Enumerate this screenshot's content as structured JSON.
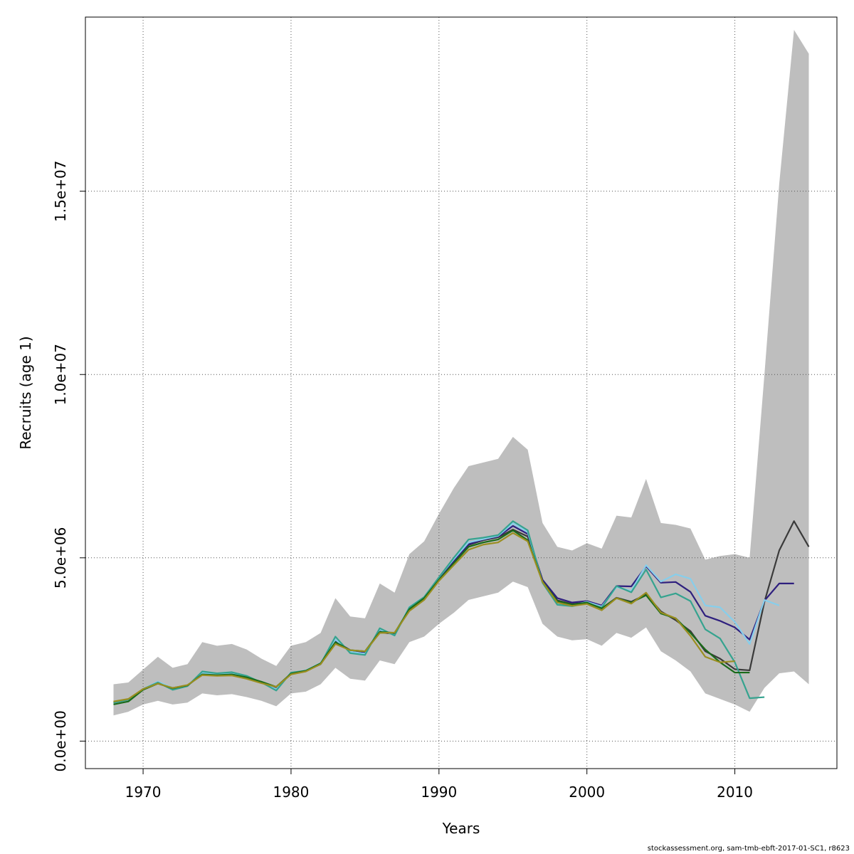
{
  "chart_data": {
    "type": "line",
    "title": "",
    "xlabel": "Years",
    "ylabel": "Recruits (age 1)",
    "xlim": [
      1966.1,
      2016.9
    ],
    "ylim": [
      -750000,
      19750000
    ],
    "x_ticks": [
      1970,
      1980,
      1990,
      2000,
      2010
    ],
    "x_tick_labels": [
      "1970",
      "1980",
      "1990",
      "2000",
      "2010"
    ],
    "y_ticks": [
      0,
      5000000,
      10000000,
      15000000
    ],
    "y_tick_labels": [
      "0.0e+00",
      "5.0e+06",
      "1.0e+07",
      "1.5e+07"
    ],
    "grid": true,
    "confidence_band": {
      "color": "#bebebe",
      "x": [
        1968,
        1969,
        1970,
        1971,
        1972,
        1973,
        1974,
        1975,
        1976,
        1977,
        1978,
        1979,
        1980,
        1981,
        1982,
        1983,
        1984,
        1985,
        1986,
        1987,
        1988,
        1989,
        1990,
        1991,
        1992,
        1993,
        1994,
        1995,
        1996,
        1997,
        1998,
        1999,
        2000,
        2001,
        2002,
        2003,
        2004,
        2005,
        2006,
        2007,
        2008,
        2009,
        2010,
        2011,
        2012,
        2013,
        2014,
        2015
      ],
      "lower": [
        700000,
        800000,
        1000000,
        1100000,
        1000000,
        1050000,
        1300000,
        1250000,
        1280000,
        1200000,
        1100000,
        950000,
        1300000,
        1350000,
        1550000,
        2000000,
        1700000,
        1650000,
        2200000,
        2100000,
        2700000,
        2850000,
        3200000,
        3500000,
        3850000,
        3950000,
        4050000,
        4350000,
        4200000,
        3200000,
        2850000,
        2750000,
        2780000,
        2600000,
        2950000,
        2820000,
        3100000,
        2450000,
        2200000,
        1900000,
        1300000,
        1150000,
        1000000,
        800000,
        1450000,
        1850000,
        1900000,
        1550000
      ],
      "upper": [
        1550000,
        1600000,
        1950000,
        2300000,
        2000000,
        2100000,
        2700000,
        2600000,
        2650000,
        2500000,
        2250000,
        2050000,
        2600000,
        2700000,
        2950000,
        3900000,
        3400000,
        3350000,
        4300000,
        4050000,
        5100000,
        5450000,
        6200000,
        6900000,
        7500000,
        7600000,
        7700000,
        8300000,
        7950000,
        5950000,
        5300000,
        5200000,
        5400000,
        5250000,
        6150000,
        6100000,
        7150000,
        5950000,
        5900000,
        5800000,
        4950000,
        5050000,
        5100000,
        5000000,
        10000000,
        15200000,
        19400000,
        18750000
      ]
    },
    "series": [
      {
        "color": "#3a3a3a",
        "x": [
          1968,
          1969,
          1970,
          1971,
          1972,
          1973,
          1974,
          1975,
          1976,
          1977,
          1978,
          1979,
          1980,
          1981,
          1982,
          1983,
          1984,
          1985,
          1986,
          1987,
          1988,
          1989,
          1990,
          1991,
          1992,
          1993,
          1994,
          1995,
          1996,
          1997,
          1998,
          1999,
          2000,
          2001,
          2002,
          2003,
          2004,
          2005,
          2006,
          2007,
          2008,
          2009,
          2010,
          2011,
          2012,
          2013,
          2014,
          2015
        ],
        "values": [
          1050000,
          1130000,
          1420000,
          1600000,
          1450000,
          1520000,
          1830000,
          1800000,
          1830000,
          1740000,
          1600000,
          1470000,
          1840000,
          1920000,
          2100000,
          2700000,
          2480000,
          2430000,
          2970000,
          2920000,
          3600000,
          3900000,
          4400000,
          4900000,
          5350000,
          5480000,
          5560000,
          5770000,
          5580000,
          4380000,
          3840000,
          3740000,
          3780000,
          3620000,
          3910000,
          3800000,
          4000000,
          3540000,
          3300000,
          3000000,
          2450000,
          2250000,
          1960000,
          1930000,
          3800000,
          5200000,
          6000000,
          5300000
        ]
      },
      {
        "color": "#2e1f7e",
        "x": [
          1968,
          1969,
          1970,
          1971,
          1972,
          1973,
          1974,
          1975,
          1976,
          1977,
          1978,
          1979,
          1980,
          1981,
          1982,
          1983,
          1984,
          1985,
          1986,
          1987,
          1988,
          1989,
          1990,
          1991,
          1992,
          1993,
          1994,
          1995,
          1996,
          1997,
          1998,
          1999,
          2000,
          2001,
          2002,
          2003,
          2004,
          2005,
          2006,
          2007,
          2008,
          2009,
          2010,
          2011,
          2012,
          2013,
          2014
        ],
        "values": [
          1050000,
          1130000,
          1420000,
          1600000,
          1450000,
          1520000,
          1830000,
          1800000,
          1830000,
          1740000,
          1600000,
          1470000,
          1840000,
          1920000,
          2100000,
          2720000,
          2480000,
          2430000,
          2990000,
          2920000,
          3620000,
          3910000,
          4420000,
          4920000,
          5370000,
          5500000,
          5580000,
          5870000,
          5650000,
          4400000,
          3900000,
          3780000,
          3820000,
          3700000,
          4230000,
          4220000,
          4770000,
          4320000,
          4340000,
          4070000,
          3420000,
          3280000,
          3100000,
          2770000,
          3830000,
          4300000,
          4300000
        ]
      },
      {
        "color": "#87ceeb",
        "x": [
          1968,
          1969,
          1970,
          1971,
          1972,
          1973,
          1974,
          1975,
          1976,
          1977,
          1978,
          1979,
          1980,
          1981,
          1982,
          1983,
          1984,
          1985,
          1986,
          1987,
          1988,
          1989,
          1990,
          1991,
          1992,
          1993,
          1994,
          1995,
          1996,
          1997,
          1998,
          1999,
          2000,
          2001,
          2002,
          2003,
          2004,
          2005,
          2006,
          2007,
          2008,
          2009,
          2010,
          2011,
          2012,
          2013
        ],
        "values": [
          1050000,
          1130000,
          1420000,
          1620000,
          1450000,
          1520000,
          1860000,
          1830000,
          1860000,
          1770000,
          1600000,
          1410000,
          1860000,
          1930000,
          2130000,
          2770000,
          2440000,
          2380000,
          3040000,
          2890000,
          3660000,
          3930000,
          4470000,
          4960000,
          5420000,
          5510000,
          5600000,
          5940000,
          5700000,
          4320000,
          3760000,
          3700000,
          3800000,
          3670000,
          4200000,
          4100000,
          4800000,
          4350000,
          4550000,
          4430000,
          3700000,
          3650000,
          3250000,
          2650000,
          3850000,
          3700000
        ]
      },
      {
        "color": "#35a38f",
        "x": [
          1968,
          1969,
          1970,
          1971,
          1972,
          1973,
          1974,
          1975,
          1976,
          1977,
          1978,
          1979,
          1980,
          1981,
          1982,
          1983,
          1984,
          1985,
          1986,
          1987,
          1988,
          1989,
          1990,
          1991,
          1992,
          1993,
          1994,
          1995,
          1996,
          1997,
          1998,
          1999,
          2000,
          2001,
          2002,
          2003,
          2004,
          2005,
          2006,
          2007,
          2008,
          2009,
          2010,
          2011,
          2012
        ],
        "values": [
          1050000,
          1130000,
          1420000,
          1600000,
          1400000,
          1500000,
          1900000,
          1850000,
          1880000,
          1780000,
          1600000,
          1380000,
          1870000,
          1920000,
          2100000,
          2850000,
          2400000,
          2350000,
          3080000,
          2880000,
          3650000,
          3930000,
          4470000,
          5000000,
          5500000,
          5550000,
          5620000,
          6000000,
          5750000,
          4320000,
          3720000,
          3680000,
          3760000,
          3640000,
          4230000,
          4060000,
          4680000,
          3920000,
          4030000,
          3820000,
          3050000,
          2800000,
          2150000,
          1170000,
          1200000
        ]
      },
      {
        "color": "#1a6b1a",
        "x": [
          1968,
          1969,
          1970,
          1971,
          1972,
          1973,
          1974,
          1975,
          1976,
          1977,
          1978,
          1979,
          1980,
          1981,
          1982,
          1983,
          1984,
          1985,
          1986,
          1987,
          1988,
          1989,
          1990,
          1991,
          1992,
          1993,
          1994,
          1995,
          1996,
          1997,
          1998,
          1999,
          2000,
          2001,
          2002,
          2003,
          2004,
          2005,
          2006,
          2007,
          2008,
          2009,
          2010,
          2011
        ],
        "values": [
          1000000,
          1080000,
          1400000,
          1570000,
          1440000,
          1520000,
          1820000,
          1800000,
          1820000,
          1740000,
          1620000,
          1480000,
          1840000,
          1920000,
          2120000,
          2700000,
          2480000,
          2450000,
          2980000,
          2950000,
          3600000,
          3900000,
          4400000,
          4850000,
          5300000,
          5420000,
          5500000,
          5750000,
          5480000,
          4350000,
          3820000,
          3720000,
          3780000,
          3620000,
          3900000,
          3780000,
          3980000,
          3480000,
          3350000,
          2950000,
          2500000,
          2150000,
          1870000,
          1870000
        ]
      },
      {
        "color": "#9a8e20",
        "x": [
          1968,
          1969,
          1970,
          1971,
          1972,
          1973,
          1974,
          1975,
          1976,
          1977,
          1978,
          1979,
          1980,
          1981,
          1982,
          1983,
          1984,
          1985,
          1986,
          1987,
          1988,
          1989,
          1990,
          1991,
          1992,
          1993,
          1994,
          1995,
          1996,
          1997,
          1998,
          1999,
          2000,
          2001,
          2002,
          2003,
          2004,
          2005,
          2006,
          2007,
          2008,
          2009,
          2010
        ],
        "values": [
          1080000,
          1150000,
          1420000,
          1570000,
          1450000,
          1530000,
          1800000,
          1780000,
          1790000,
          1700000,
          1580000,
          1480000,
          1820000,
          1900000,
          2100000,
          2650000,
          2480000,
          2450000,
          2950000,
          2960000,
          3550000,
          3850000,
          4370000,
          4800000,
          5220000,
          5360000,
          5420000,
          5680000,
          5450000,
          4340000,
          3780000,
          3690000,
          3740000,
          3570000,
          3900000,
          3750000,
          4050000,
          3510000,
          3350000,
          2870000,
          2300000,
          2150000,
          2180000
        ]
      }
    ]
  },
  "footer": "stockassessment.org, sam-tmb-ebft-2017-01-SC1, r8623"
}
